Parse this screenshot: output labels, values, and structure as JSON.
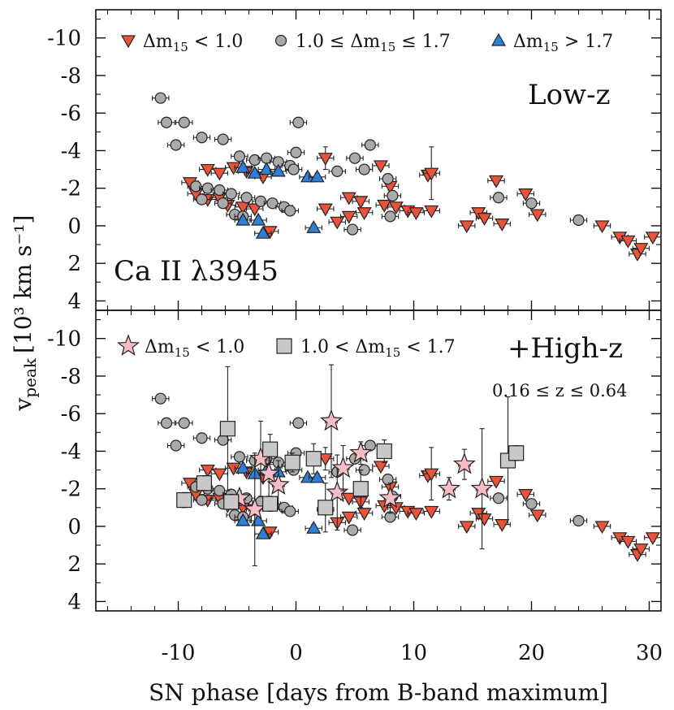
{
  "chart_data": {
    "type": "scatter",
    "xlabel": "SN phase [days from B-band maximum]",
    "ylabel_main": "v",
    "ylabel_sub": "peak",
    "ylabel_units": "[10³ km s⁻¹]",
    "xlim": [
      -17,
      31
    ],
    "ylim": [
      4.5,
      -11.5
    ],
    "x_ticks": [
      -10,
      0,
      10,
      20,
      30
    ],
    "x_tick_labels": [
      "-10",
      "0",
      "10",
      "20",
      "30"
    ],
    "y_ticks": [
      -10,
      -8,
      -6,
      -4,
      -2,
      0,
      2,
      4
    ],
    "y_tick_labels": [
      "-10",
      "-8",
      "-6",
      "-4",
      "-2",
      "0",
      "2",
      "4"
    ],
    "colors": {
      "low_dm15": "#e8533a",
      "mid_dm15": "#aaaaaa",
      "high_dm15": "#2f7fd6",
      "hz_star": "#f8bcc5",
      "hz_square": "#c8c8c8",
      "errorbar": "#222222"
    },
    "panels": [
      {
        "name": "low-z",
        "annotation": "Low-z",
        "line_label": "Ca II λ3945",
        "legend": [
          {
            "marker": "triangle-down",
            "color": "#e8533a",
            "base": "Δm",
            "sub": "15",
            "rest": " < 1.0"
          },
          {
            "marker": "circle",
            "color": "#aaaaaa",
            "base": "1.0 ≤ Δm",
            "sub": "15",
            "rest": " ≤ 1.7"
          },
          {
            "marker": "triangle-up",
            "color": "#2f7fd6",
            "base": "Δm",
            "sub": "15",
            "rest": " > 1.7"
          }
        ]
      },
      {
        "name": "high-z",
        "annotation": "+High-z",
        "redshift_label": "0.16 ≤ z ≤ 0.64",
        "legend": [
          {
            "marker": "star",
            "color": "#f8bcc5",
            "base": "Δm",
            "sub": "15",
            "rest": " < 1.0"
          },
          {
            "marker": "square",
            "color": "#c8c8c8",
            "base": "1.0 < Δm",
            "sub": "15",
            "rest": " < 1.7"
          }
        ]
      }
    ],
    "series": [
      {
        "name": "Δm15 < 1.0 (low-z)",
        "marker": "triangle-down",
        "color": "#e8533a",
        "points": [
          {
            "x": -9,
            "y": -2.3,
            "xe": 0.7,
            "ye": 0.2
          },
          {
            "x": -7.5,
            "y": -3.0,
            "xe": 0.7,
            "ye": 0.2
          },
          {
            "x": -6.5,
            "y": -2.8,
            "xe": 0.7,
            "ye": 0.2
          },
          {
            "x": -5.3,
            "y": -3.1,
            "xe": 0.7,
            "ye": 0.2
          },
          {
            "x": -4.2,
            "y": -2.9,
            "xe": 0.7,
            "ye": 0.2
          },
          {
            "x": -2.8,
            "y": -2.6,
            "xe": 0.7,
            "ye": 0.2
          },
          {
            "x": -8.5,
            "y": -1.7,
            "xe": 0.7,
            "ye": 0.2
          },
          {
            "x": -7.5,
            "y": -1.4,
            "xe": 0.7,
            "ye": 0.2
          },
          {
            "x": -6.5,
            "y": -1.5,
            "xe": 0.7,
            "ye": 0.2
          },
          {
            "x": -5.8,
            "y": -1.1,
            "xe": 0.7,
            "ye": 0.2
          },
          {
            "x": -4.5,
            "y": -1.0,
            "xe": 0.7,
            "ye": 0.2
          },
          {
            "x": -3.5,
            "y": -0.9,
            "xe": 0.7,
            "ye": 0.2
          },
          {
            "x": -2.2,
            "y": 0.3,
            "xe": 0.7,
            "ye": 0.2
          },
          {
            "x": 2.5,
            "y": -3.6,
            "xe": 0.7,
            "ye": 0.6
          },
          {
            "x": 2.5,
            "y": -0.9,
            "xe": 0.7,
            "ye": 0.2
          },
          {
            "x": 3.5,
            "y": -0.2,
            "xe": 0.7,
            "ye": 0.2
          },
          {
            "x": 4.5,
            "y": -1.5,
            "xe": 0.7,
            "ye": 0.2
          },
          {
            "x": 4.5,
            "y": -0.5,
            "xe": 0.7,
            "ye": 0.2
          },
          {
            "x": 5.5,
            "y": -1.3,
            "xe": 0.7,
            "ye": 0.2
          },
          {
            "x": 5.8,
            "y": -0.7,
            "xe": 0.7,
            "ye": 0.2
          },
          {
            "x": 7.2,
            "y": -3.2,
            "xe": 0.7,
            "ye": 0.2
          },
          {
            "x": 7.5,
            "y": -1.1,
            "xe": 0.7,
            "ye": 0.2
          },
          {
            "x": 8.0,
            "y": -2.1,
            "xe": 0.7,
            "ye": 0.2
          },
          {
            "x": 8.5,
            "y": -1.0,
            "xe": 0.7,
            "ye": 0.2
          },
          {
            "x": 9.5,
            "y": -0.8,
            "xe": 0.7,
            "ye": 0.2
          },
          {
            "x": 10.2,
            "y": -0.7,
            "xe": 0.7,
            "ye": 0.2
          },
          {
            "x": 11.2,
            "y": -2.7,
            "xe": 0.7,
            "ye": 0.2
          },
          {
            "x": 11.5,
            "y": -2.8,
            "xe": 0.7,
            "ye": 1.4
          },
          {
            "x": 11.5,
            "y": -0.8,
            "xe": 0.7,
            "ye": 0.2
          },
          {
            "x": 14.5,
            "y": 0.0,
            "xe": 0.7,
            "ye": 0.2
          },
          {
            "x": 15.5,
            "y": -0.7,
            "xe": 0.7,
            "ye": 0.2
          },
          {
            "x": 16.0,
            "y": -0.4,
            "xe": 0.7,
            "ye": 0.2
          },
          {
            "x": 17.0,
            "y": -2.4,
            "xe": 0.7,
            "ye": 0.2
          },
          {
            "x": 17.5,
            "y": -0.1,
            "xe": 0.7,
            "ye": 0.2
          },
          {
            "x": 19.5,
            "y": -1.7,
            "xe": 0.7,
            "ye": 0.2
          },
          {
            "x": 20.5,
            "y": -0.6,
            "xe": 0.7,
            "ye": 0.2
          },
          {
            "x": 26.0,
            "y": 0.0,
            "xe": 0.7,
            "ye": 0.2
          },
          {
            "x": 27.5,
            "y": 0.6,
            "xe": 0.7,
            "ye": 0.2
          },
          {
            "x": 28.2,
            "y": 0.8,
            "xe": 0.7,
            "ye": 0.2
          },
          {
            "x": 29.0,
            "y": 1.5,
            "xe": 0.7,
            "ye": 0.2
          },
          {
            "x": 29.3,
            "y": 1.2,
            "xe": 0.7,
            "ye": 0.2
          },
          {
            "x": 30.3,
            "y": 0.6,
            "xe": 0.7,
            "ye": 0.2
          }
        ]
      },
      {
        "name": "1.0 ≤ Δm15 ≤ 1.7 (low-z)",
        "marker": "circle",
        "color": "#aaaaaa",
        "points": [
          {
            "x": -11.5,
            "y": -6.8,
            "xe": 0.7,
            "ye": 0.2
          },
          {
            "x": -11.0,
            "y": -5.5,
            "xe": 0.7,
            "ye": 0.2
          },
          {
            "x": -9.5,
            "y": -5.5,
            "xe": 0.7,
            "ye": 0.2
          },
          {
            "x": -10.2,
            "y": -4.3,
            "xe": 0.7,
            "ye": 0.2
          },
          {
            "x": -8.0,
            "y": -4.7,
            "xe": 0.7,
            "ye": 0.2
          },
          {
            "x": -6.2,
            "y": -4.6,
            "xe": 0.7,
            "ye": 0.2
          },
          {
            "x": -4.8,
            "y": -3.7,
            "xe": 0.7,
            "ye": 0.2
          },
          {
            "x": -3.5,
            "y": -3.5,
            "xe": 0.7,
            "ye": 0.2
          },
          {
            "x": -2.5,
            "y": -3.6,
            "xe": 0.7,
            "ye": 0.2
          },
          {
            "x": -1.5,
            "y": -3.4,
            "xe": 0.7,
            "ye": 0.2
          },
          {
            "x": -0.5,
            "y": -3.2,
            "xe": 0.7,
            "ye": 0.2
          },
          {
            "x": 0.0,
            "y": -3.9,
            "xe": 0.7,
            "ye": 0.2
          },
          {
            "x": 0.2,
            "y": -5.5,
            "xe": 0.7,
            "ye": 0.2
          },
          {
            "x": -0.2,
            "y": -3.0,
            "xe": 0.7,
            "ye": 0.2
          },
          {
            "x": -8.5,
            "y": -2.1,
            "xe": 0.7,
            "ye": 0.2
          },
          {
            "x": -7.5,
            "y": -2.0,
            "xe": 0.7,
            "ye": 0.2
          },
          {
            "x": -6.5,
            "y": -1.9,
            "xe": 0.7,
            "ye": 0.2
          },
          {
            "x": -5.5,
            "y": -1.7,
            "xe": 0.7,
            "ye": 0.2
          },
          {
            "x": -4.2,
            "y": -1.5,
            "xe": 0.7,
            "ye": 0.2
          },
          {
            "x": -3.0,
            "y": -1.3,
            "xe": 0.7,
            "ye": 0.2
          },
          {
            "x": -2.0,
            "y": -1.2,
            "xe": 0.7,
            "ye": 0.2
          },
          {
            "x": -1.0,
            "y": -1.0,
            "xe": 0.7,
            "ye": 0.2
          },
          {
            "x": -0.5,
            "y": -0.8,
            "xe": 0.7,
            "ye": 0.2
          },
          {
            "x": -8.0,
            "y": -1.4,
            "xe": 0.7,
            "ye": 0.2
          },
          {
            "x": -6.2,
            "y": -1.2,
            "xe": 0.7,
            "ye": 0.2
          },
          {
            "x": -5.2,
            "y": -0.6,
            "xe": 0.7,
            "ye": 0.2
          },
          {
            "x": -4.5,
            "y": -0.5,
            "xe": 0.7,
            "ye": 0.2
          },
          {
            "x": 3.5,
            "y": -2.9,
            "xe": 0.7,
            "ye": 0.2
          },
          {
            "x": 5.0,
            "y": -3.6,
            "xe": 0.7,
            "ye": 0.2
          },
          {
            "x": 6.3,
            "y": -4.3,
            "xe": 0.7,
            "ye": 0.2
          },
          {
            "x": 5.8,
            "y": -3.0,
            "xe": 0.7,
            "ye": 0.2
          },
          {
            "x": 7.8,
            "y": -2.5,
            "xe": 0.7,
            "ye": 0.2
          },
          {
            "x": 8.2,
            "y": -1.6,
            "xe": 0.7,
            "ye": 0.2
          },
          {
            "x": 8.0,
            "y": -0.5,
            "xe": 0.7,
            "ye": 0.2
          },
          {
            "x": 4.8,
            "y": 0.2,
            "xe": 0.7,
            "ye": 0.2
          },
          {
            "x": 17.2,
            "y": -1.5,
            "xe": 0.7,
            "ye": 0.2
          },
          {
            "x": 20.0,
            "y": -1.2,
            "xe": 0.7,
            "ye": 0.2
          },
          {
            "x": 24.0,
            "y": -0.3,
            "xe": 0.7,
            "ye": 0.2
          }
        ]
      },
      {
        "name": "Δm15 > 1.7 (low-z)",
        "marker": "triangle-up",
        "color": "#2f7fd6",
        "points": [
          {
            "x": -4.5,
            "y": -3.1,
            "xe": 0.7,
            "ye": 0.2
          },
          {
            "x": -3.5,
            "y": -2.8,
            "xe": 0.7,
            "ye": 0.2
          },
          {
            "x": -2.5,
            "y": -3.0,
            "xe": 0.7,
            "ye": 0.2
          },
          {
            "x": -1.5,
            "y": -2.9,
            "xe": 0.7,
            "ye": 0.2
          },
          {
            "x": 1.0,
            "y": -2.6,
            "xe": 0.7,
            "ye": 0.2
          },
          {
            "x": 1.8,
            "y": -2.6,
            "xe": 0.7,
            "ye": 0.2
          },
          {
            "x": -4.5,
            "y": -0.3,
            "xe": 0.7,
            "ye": 0.2
          },
          {
            "x": -3.2,
            "y": -0.3,
            "xe": 0.7,
            "ye": 0.2
          },
          {
            "x": -2.8,
            "y": 0.4,
            "xe": 0.7,
            "ye": 0.2
          },
          {
            "x": 1.5,
            "y": 0.1,
            "xe": 0.7,
            "ye": 0.2
          }
        ]
      },
      {
        "name": "Δm15 < 1.0 (high-z)",
        "marker": "star",
        "color": "#f8bcc5",
        "panel": "high-z",
        "points": [
          {
            "x": -3.0,
            "y": -3.6,
            "xe": 0.5,
            "ye": 2.0
          },
          {
            "x": -2.3,
            "y": -2.8,
            "xe": 0.5,
            "ye": 1.2
          },
          {
            "x": -1.5,
            "y": -2.2,
            "xe": 0.5,
            "ye": 1.3
          },
          {
            "x": -4.8,
            "y": -1.5,
            "xe": 0.5,
            "ye": 0.4
          },
          {
            "x": -3.5,
            "y": -0.9,
            "xe": 0.5,
            "ye": 3.0
          },
          {
            "x": 3.0,
            "y": -5.6,
            "xe": 0.5,
            "ye": 3.0
          },
          {
            "x": 3.5,
            "y": -1.8,
            "xe": 0.5,
            "ye": 2.0
          },
          {
            "x": 4.0,
            "y": -3.1,
            "xe": 0.5,
            "ye": 1.2
          },
          {
            "x": 5.5,
            "y": -3.9,
            "xe": 0.5,
            "ye": 0.6
          },
          {
            "x": 8.0,
            "y": -1.5,
            "xe": 0.5,
            "ye": 0.8
          },
          {
            "x": 13.0,
            "y": -2.0,
            "xe": 0.5,
            "ye": 0.6
          },
          {
            "x": 14.3,
            "y": -3.3,
            "xe": 0.5,
            "ye": 0.8
          },
          {
            "x": 15.8,
            "y": -2.0,
            "xe": 0.5,
            "ye": 3.2
          }
        ]
      },
      {
        "name": "1.0 < Δm15 < 1.7 (high-z)",
        "marker": "square",
        "color": "#c8c8c8",
        "panel": "high-z",
        "points": [
          {
            "x": -9.5,
            "y": -1.4,
            "xe": 0.5,
            "ye": 0.4
          },
          {
            "x": -7.8,
            "y": -2.3,
            "xe": 0.5,
            "ye": 0.4
          },
          {
            "x": -5.8,
            "y": -5.2,
            "xe": 0.5,
            "ye": 3.3
          },
          {
            "x": -5.5,
            "y": -1.3,
            "xe": 0.5,
            "ye": 0.4
          },
          {
            "x": -2.2,
            "y": -4.1,
            "xe": 0.5,
            "ye": 0.8
          },
          {
            "x": -2.2,
            "y": -1.2,
            "xe": 0.5,
            "ye": 0.4
          },
          {
            "x": -0.3,
            "y": -3.4,
            "xe": 0.5,
            "ye": 0.5
          },
          {
            "x": 1.5,
            "y": -3.6,
            "xe": 0.5,
            "ye": 0.8
          },
          {
            "x": 2.5,
            "y": -1.0,
            "xe": 0.5,
            "ye": 1.3
          },
          {
            "x": 5.5,
            "y": -2.0,
            "xe": 0.5,
            "ye": 1.0
          },
          {
            "x": 7.5,
            "y": -4.0,
            "xe": 0.5,
            "ye": 0.6
          },
          {
            "x": 18.0,
            "y": -3.5,
            "xe": 0.5,
            "ye": 3.4
          },
          {
            "x": 18.7,
            "y": -3.9,
            "xe": 0.5,
            "ye": 0.4
          }
        ]
      }
    ]
  }
}
